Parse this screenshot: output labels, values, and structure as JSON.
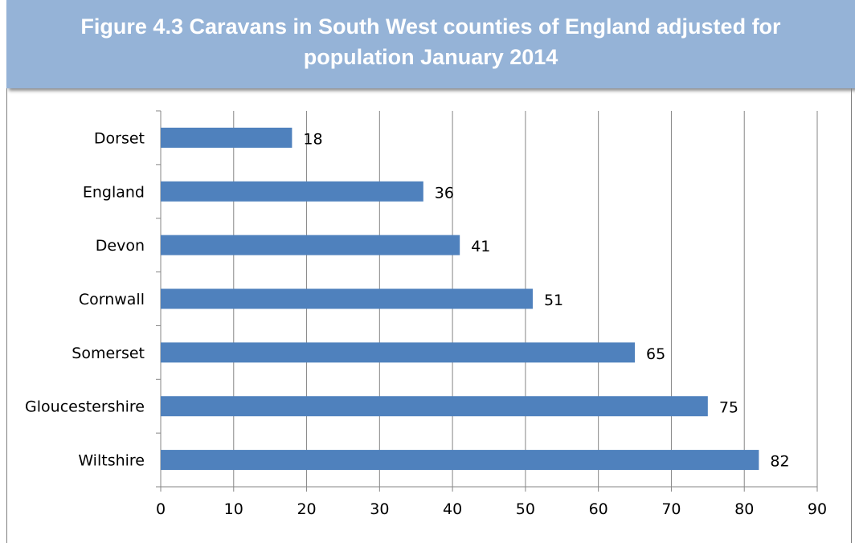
{
  "title": "Figure 4.3 Caravans in South West counties of England adjusted for population January 2014",
  "colors": {
    "banner": "#95b3d7",
    "bar": "#4f81bd",
    "grid": "#868686"
  },
  "chart_data": {
    "type": "bar",
    "orientation": "horizontal",
    "title": "Figure 4.3 Caravans in South West counties of England adjusted for population January 2014",
    "categories": [
      "Dorset",
      "England",
      "Devon",
      "Cornwall",
      "Somerset",
      "Gloucestershire",
      "Wiltshire"
    ],
    "values": [
      18,
      36,
      41,
      51,
      65,
      75,
      82
    ],
    "xlim": [
      0,
      90
    ],
    "xticks": [
      0,
      10,
      20,
      30,
      40,
      50,
      60,
      70,
      80,
      90
    ],
    "grid": "vertical",
    "data_labels": true,
    "legend": "none"
  }
}
